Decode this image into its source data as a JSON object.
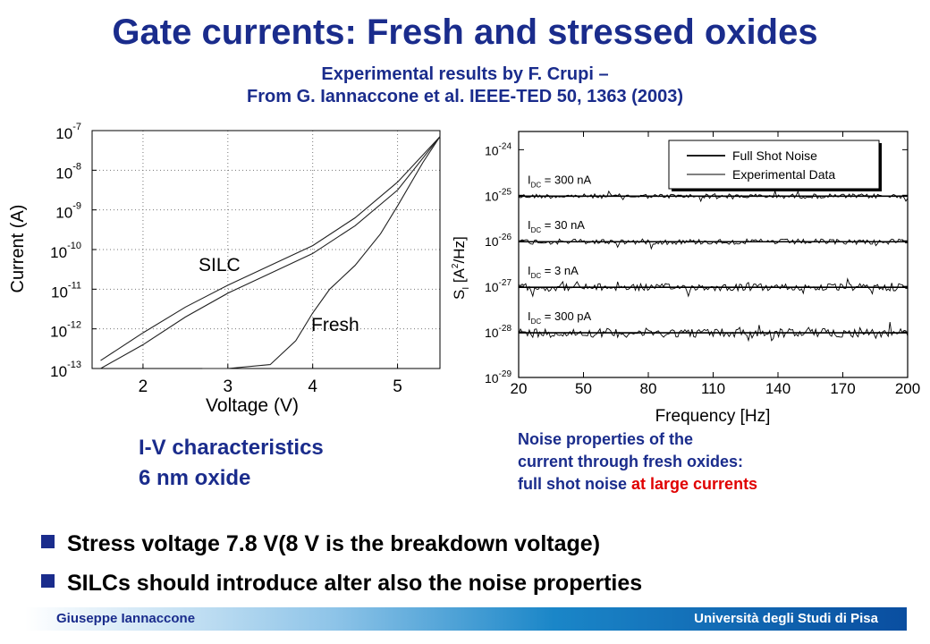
{
  "slide": {
    "title": "Gate currents: Fresh and stressed oxides",
    "subtitle_line1": "Experimental results by F.  Crupi –",
    "subtitle_line2": "From G. Iannaccone et al. IEEE-TED 50, 1363 (2003)",
    "iv_caption_line1": "I-V characteristics",
    "iv_caption_line2": "6 nm oxide",
    "noise_caption_line1": "Noise properties of the",
    "noise_caption_line2": "current through fresh oxides:",
    "noise_caption_line3_pre": "full shot noise ",
    "noise_caption_line3_highlight": "at large currents",
    "bullets": [
      "Stress voltage 7.8 V(8 V is the breakdown voltage)",
      "SILCs should introduce alter also the noise properties"
    ],
    "footer_left": "Giuseppe Iannaccone",
    "footer_right": "Università degli Studi di Pisa"
  },
  "colors": {
    "title": "#1a2c8c",
    "highlight": "#e00000",
    "bullet": "#1a2c8c",
    "footer_gradient_end": "#0a4ea0"
  },
  "chart_data": [
    {
      "type": "line",
      "xlabel": "Voltage (V)",
      "ylabel": "Current (A)",
      "xlim": [
        1.4,
        5.5
      ],
      "xticks": [
        "2",
        "3",
        "4",
        "5"
      ],
      "xtick_values": [
        2,
        3,
        4,
        5
      ],
      "ylim_exponent": [
        -13,
        -7
      ],
      "ytick_exponents": [
        "-7",
        "-8",
        "-9",
        "-10",
        "-11",
        "-12",
        "-13"
      ],
      "ytick_base": "10",
      "yscale": "log",
      "grid": "dotted",
      "annotations": [
        "SILC",
        "Fresh"
      ],
      "series": [
        {
          "name": "SILC",
          "x": [
            1.5,
            2.0,
            2.5,
            3.0,
            3.5,
            4.0,
            4.5,
            5.0,
            5.5
          ],
          "log10_y": [
            -13.0,
            -12.4,
            -11.7,
            -11.1,
            -10.6,
            -10.1,
            -9.4,
            -8.5,
            -7.15
          ]
        },
        {
          "name": "SILC",
          "x": [
            1.5,
            2.0,
            2.5,
            3.0,
            3.5,
            4.0,
            4.5,
            5.0,
            5.5
          ],
          "log10_y": [
            -12.8,
            -12.1,
            -11.45,
            -10.9,
            -10.4,
            -9.9,
            -9.2,
            -8.3,
            -7.15
          ]
        },
        {
          "name": "Fresh",
          "x": [
            2.7,
            3.0,
            3.5,
            3.8,
            4.0,
            4.2,
            4.5,
            4.8,
            5.0,
            5.3,
            5.5
          ],
          "log10_y": [
            -13.0,
            -13.0,
            -12.9,
            -12.3,
            -11.6,
            -11.0,
            -10.4,
            -9.6,
            -8.9,
            -7.8,
            -7.15
          ]
        }
      ]
    },
    {
      "type": "line",
      "xlabel": "Frequency [Hz]",
      "ylabel": "S_I [A^2/Hz]",
      "xlim": [
        20,
        200
      ],
      "xticks": [
        "20",
        "50",
        "80",
        "110",
        "140",
        "170",
        "200"
      ],
      "xtick_values": [
        20,
        50,
        80,
        110,
        140,
        170,
        200
      ],
      "ylim_exponent": [
        -29,
        -23.6
      ],
      "ytick_exponents": [
        "-24",
        "-25",
        "-26",
        "-27",
        "-28",
        "-29"
      ],
      "ytick_base": "10",
      "yscale": "log",
      "legend": {
        "position": "top-right",
        "entries": [
          "Full Shot Noise",
          "Experimental Data"
        ]
      },
      "series": [
        {
          "name": "Full Shot Noise",
          "label": "I_DC = 300 nA",
          "log10_y": -25.02
        },
        {
          "name": "Full Shot Noise",
          "label": "I_DC = 30 nA",
          "log10_y": -26.02
        },
        {
          "name": "Full Shot Noise",
          "label": "I_DC = 3 nA",
          "log10_y": -27.02
        },
        {
          "name": "Full Shot Noise",
          "label": "I_DC = 300 pA",
          "log10_y": -28.02
        }
      ],
      "current_labels": [
        {
          "pre": "I",
          "sub": "DC",
          "post": " = 300 nA"
        },
        {
          "pre": "I",
          "sub": "DC",
          "post": " = 30 nA"
        },
        {
          "pre": "I",
          "sub": "DC",
          "post": " = 3 nA"
        },
        {
          "pre": "I",
          "sub": "DC",
          "post": " = 300 pA"
        }
      ],
      "noise_amplitude_decades": [
        0.05,
        0.06,
        0.08,
        0.1
      ]
    }
  ]
}
